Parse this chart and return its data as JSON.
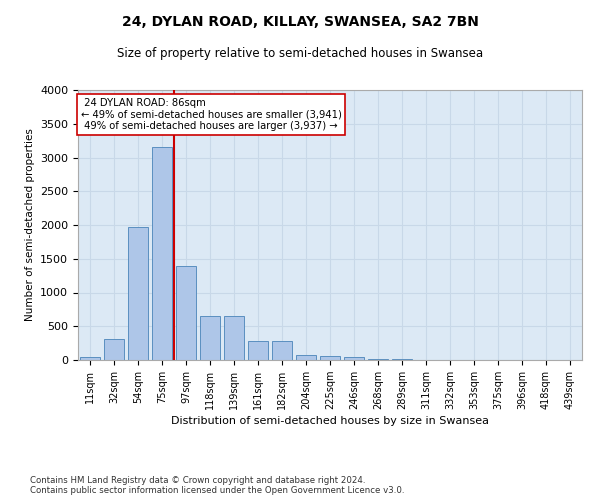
{
  "title": "24, DYLAN ROAD, KILLAY, SWANSEA, SA2 7BN",
  "subtitle": "Size of property relative to semi-detached houses in Swansea",
  "xlabel": "Distribution of semi-detached houses by size in Swansea",
  "ylabel": "Number of semi-detached properties",
  "categories": [
    "11sqm",
    "32sqm",
    "54sqm",
    "75sqm",
    "97sqm",
    "118sqm",
    "139sqm",
    "161sqm",
    "182sqm",
    "204sqm",
    "225sqm",
    "246sqm",
    "268sqm",
    "289sqm",
    "311sqm",
    "332sqm",
    "353sqm",
    "375sqm",
    "396sqm",
    "418sqm",
    "439sqm"
  ],
  "values": [
    50,
    310,
    1970,
    3160,
    1390,
    650,
    650,
    280,
    280,
    80,
    55,
    40,
    20,
    8,
    4,
    3,
    2,
    1,
    1,
    1,
    1
  ],
  "bar_color": "#aec6e8",
  "bar_edge_color": "#5a8fc0",
  "grid_color": "#c8d8e8",
  "background_color": "#dce9f5",
  "property_label": "24 DYLAN ROAD: 86sqm",
  "pct_smaller": 49,
  "n_smaller": 3941,
  "pct_larger": 49,
  "n_larger": 3937,
  "vline_color": "#cc0000",
  "annotation_box_color": "#ffffff",
  "annotation_box_edge": "#cc0000",
  "ylim": [
    0,
    4000
  ],
  "yticks": [
    0,
    500,
    1000,
    1500,
    2000,
    2500,
    3000,
    3500,
    4000
  ],
  "footer_line1": "Contains HM Land Registry data © Crown copyright and database right 2024.",
  "footer_line2": "Contains public sector information licensed under the Open Government Licence v3.0.",
  "vline_x": 3.5
}
